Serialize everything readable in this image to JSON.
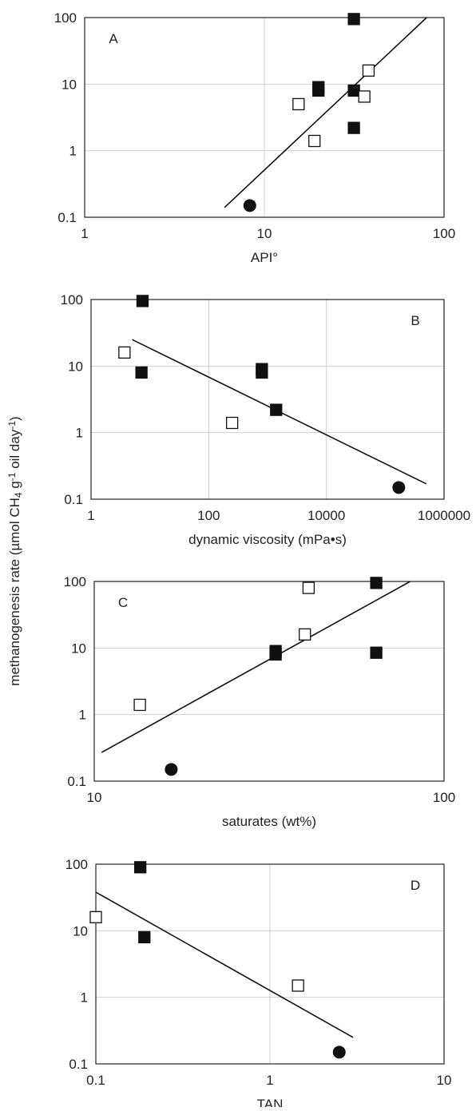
{
  "y_label": [
    {
      "text": "methanogenesis rate (µmol CH",
      "shift": "none"
    },
    {
      "text": "4",
      "shift": "sub"
    },
    {
      "text": " g",
      "shift": "none"
    },
    {
      "text": "-1",
      "shift": "sup"
    },
    {
      "text": " oil day",
      "shift": "none"
    },
    {
      "text": "-1",
      "shift": "sup"
    },
    {
      "text": ")",
      "shift": "none"
    }
  ],
  "chart_data": [
    {
      "type": "scatter",
      "label": "A",
      "label_corner": "top-left",
      "xlabel": "API°",
      "log_x": true,
      "log_y": true,
      "grid": true,
      "xlim": [
        1,
        100
      ],
      "xticks": [
        1,
        10,
        100
      ],
      "ylim": [
        0.1,
        100
      ],
      "yticks": [
        0.1,
        1,
        10,
        100
      ],
      "series": [
        {
          "marker": "square-filled",
          "x": [
            31.5,
            20,
            20,
            31.5,
            31.5
          ],
          "values": [
            95,
            9,
            8,
            8,
            2.2
          ]
        },
        {
          "marker": "square-open",
          "x": [
            15.5,
            19,
            38,
            36
          ],
          "values": [
            5,
            1.4,
            16,
            6.5
          ]
        },
        {
          "marker": "circle-filled",
          "x": [
            8.3
          ],
          "values": [
            0.15
          ]
        }
      ],
      "trendline": {
        "x": [
          6,
          80
        ],
        "values": [
          0.14,
          100
        ]
      }
    },
    {
      "type": "scatter",
      "label": "B",
      "label_corner": "top-right",
      "xlabel": "dynamic viscosity (mPa•s)",
      "log_x": true,
      "log_y": true,
      "grid": true,
      "xlim": [
        1,
        1000000
      ],
      "xticks": [
        1,
        100,
        10000,
        1000000
      ],
      "ylim": [
        0.1,
        100
      ],
      "yticks": [
        0.1,
        1,
        10,
        100
      ],
      "series": [
        {
          "marker": "square-filled",
          "x": [
            7.5,
            7.2,
            800,
            800,
            1400
          ],
          "values": [
            95,
            8,
            9,
            8,
            2.2
          ]
        },
        {
          "marker": "square-open",
          "x": [
            3.7,
            250
          ],
          "values": [
            16,
            1.4
          ]
        },
        {
          "marker": "circle-filled",
          "x": [
            170000
          ],
          "values": [
            0.15
          ]
        }
      ],
      "trendline": {
        "x": [
          5,
          500000
        ],
        "values": [
          25,
          0.17
        ]
      }
    },
    {
      "type": "scatter",
      "label": "C",
      "label_corner": "top-left",
      "xlabel": "saturates (wt%)",
      "log_x": true,
      "log_y": true,
      "grid": true,
      "xlim": [
        10,
        100
      ],
      "xticks": [
        10,
        100
      ],
      "ylim": [
        0.1,
        100
      ],
      "yticks": [
        0.1,
        1,
        10,
        100
      ],
      "series": [
        {
          "marker": "square-filled",
          "x": [
            64,
            33,
            33,
            64
          ],
          "values": [
            95,
            9,
            8,
            8.5
          ]
        },
        {
          "marker": "square-open",
          "x": [
            41,
            40,
            13.5
          ],
          "values": [
            80,
            16,
            1.4
          ]
        },
        {
          "marker": "circle-filled",
          "x": [
            16.6
          ],
          "values": [
            0.15
          ]
        }
      ],
      "trendline": {
        "x": [
          10.5,
          80
        ],
        "values": [
          0.27,
          100
        ]
      }
    },
    {
      "type": "scatter",
      "label": "D",
      "label_corner": "top-right",
      "xlabel": "TAN",
      "log_x": true,
      "log_y": true,
      "grid": true,
      "xlim": [
        0.1,
        10
      ],
      "xticks": [
        0.1,
        1,
        10
      ],
      "ylim": [
        0.1,
        100
      ],
      "yticks": [
        0.1,
        1,
        10,
        100
      ],
      "series": [
        {
          "marker": "square-filled",
          "x": [
            0.18,
            0.19
          ],
          "values": [
            90,
            8
          ]
        },
        {
          "marker": "square-open",
          "x": [
            0.1,
            1.45
          ],
          "values": [
            16,
            1.5
          ]
        },
        {
          "marker": "circle-filled",
          "x": [
            2.5
          ],
          "values": [
            0.15
          ]
        }
      ],
      "trendline": {
        "x": [
          0.1,
          3
        ],
        "values": [
          38,
          0.25
        ]
      }
    }
  ]
}
